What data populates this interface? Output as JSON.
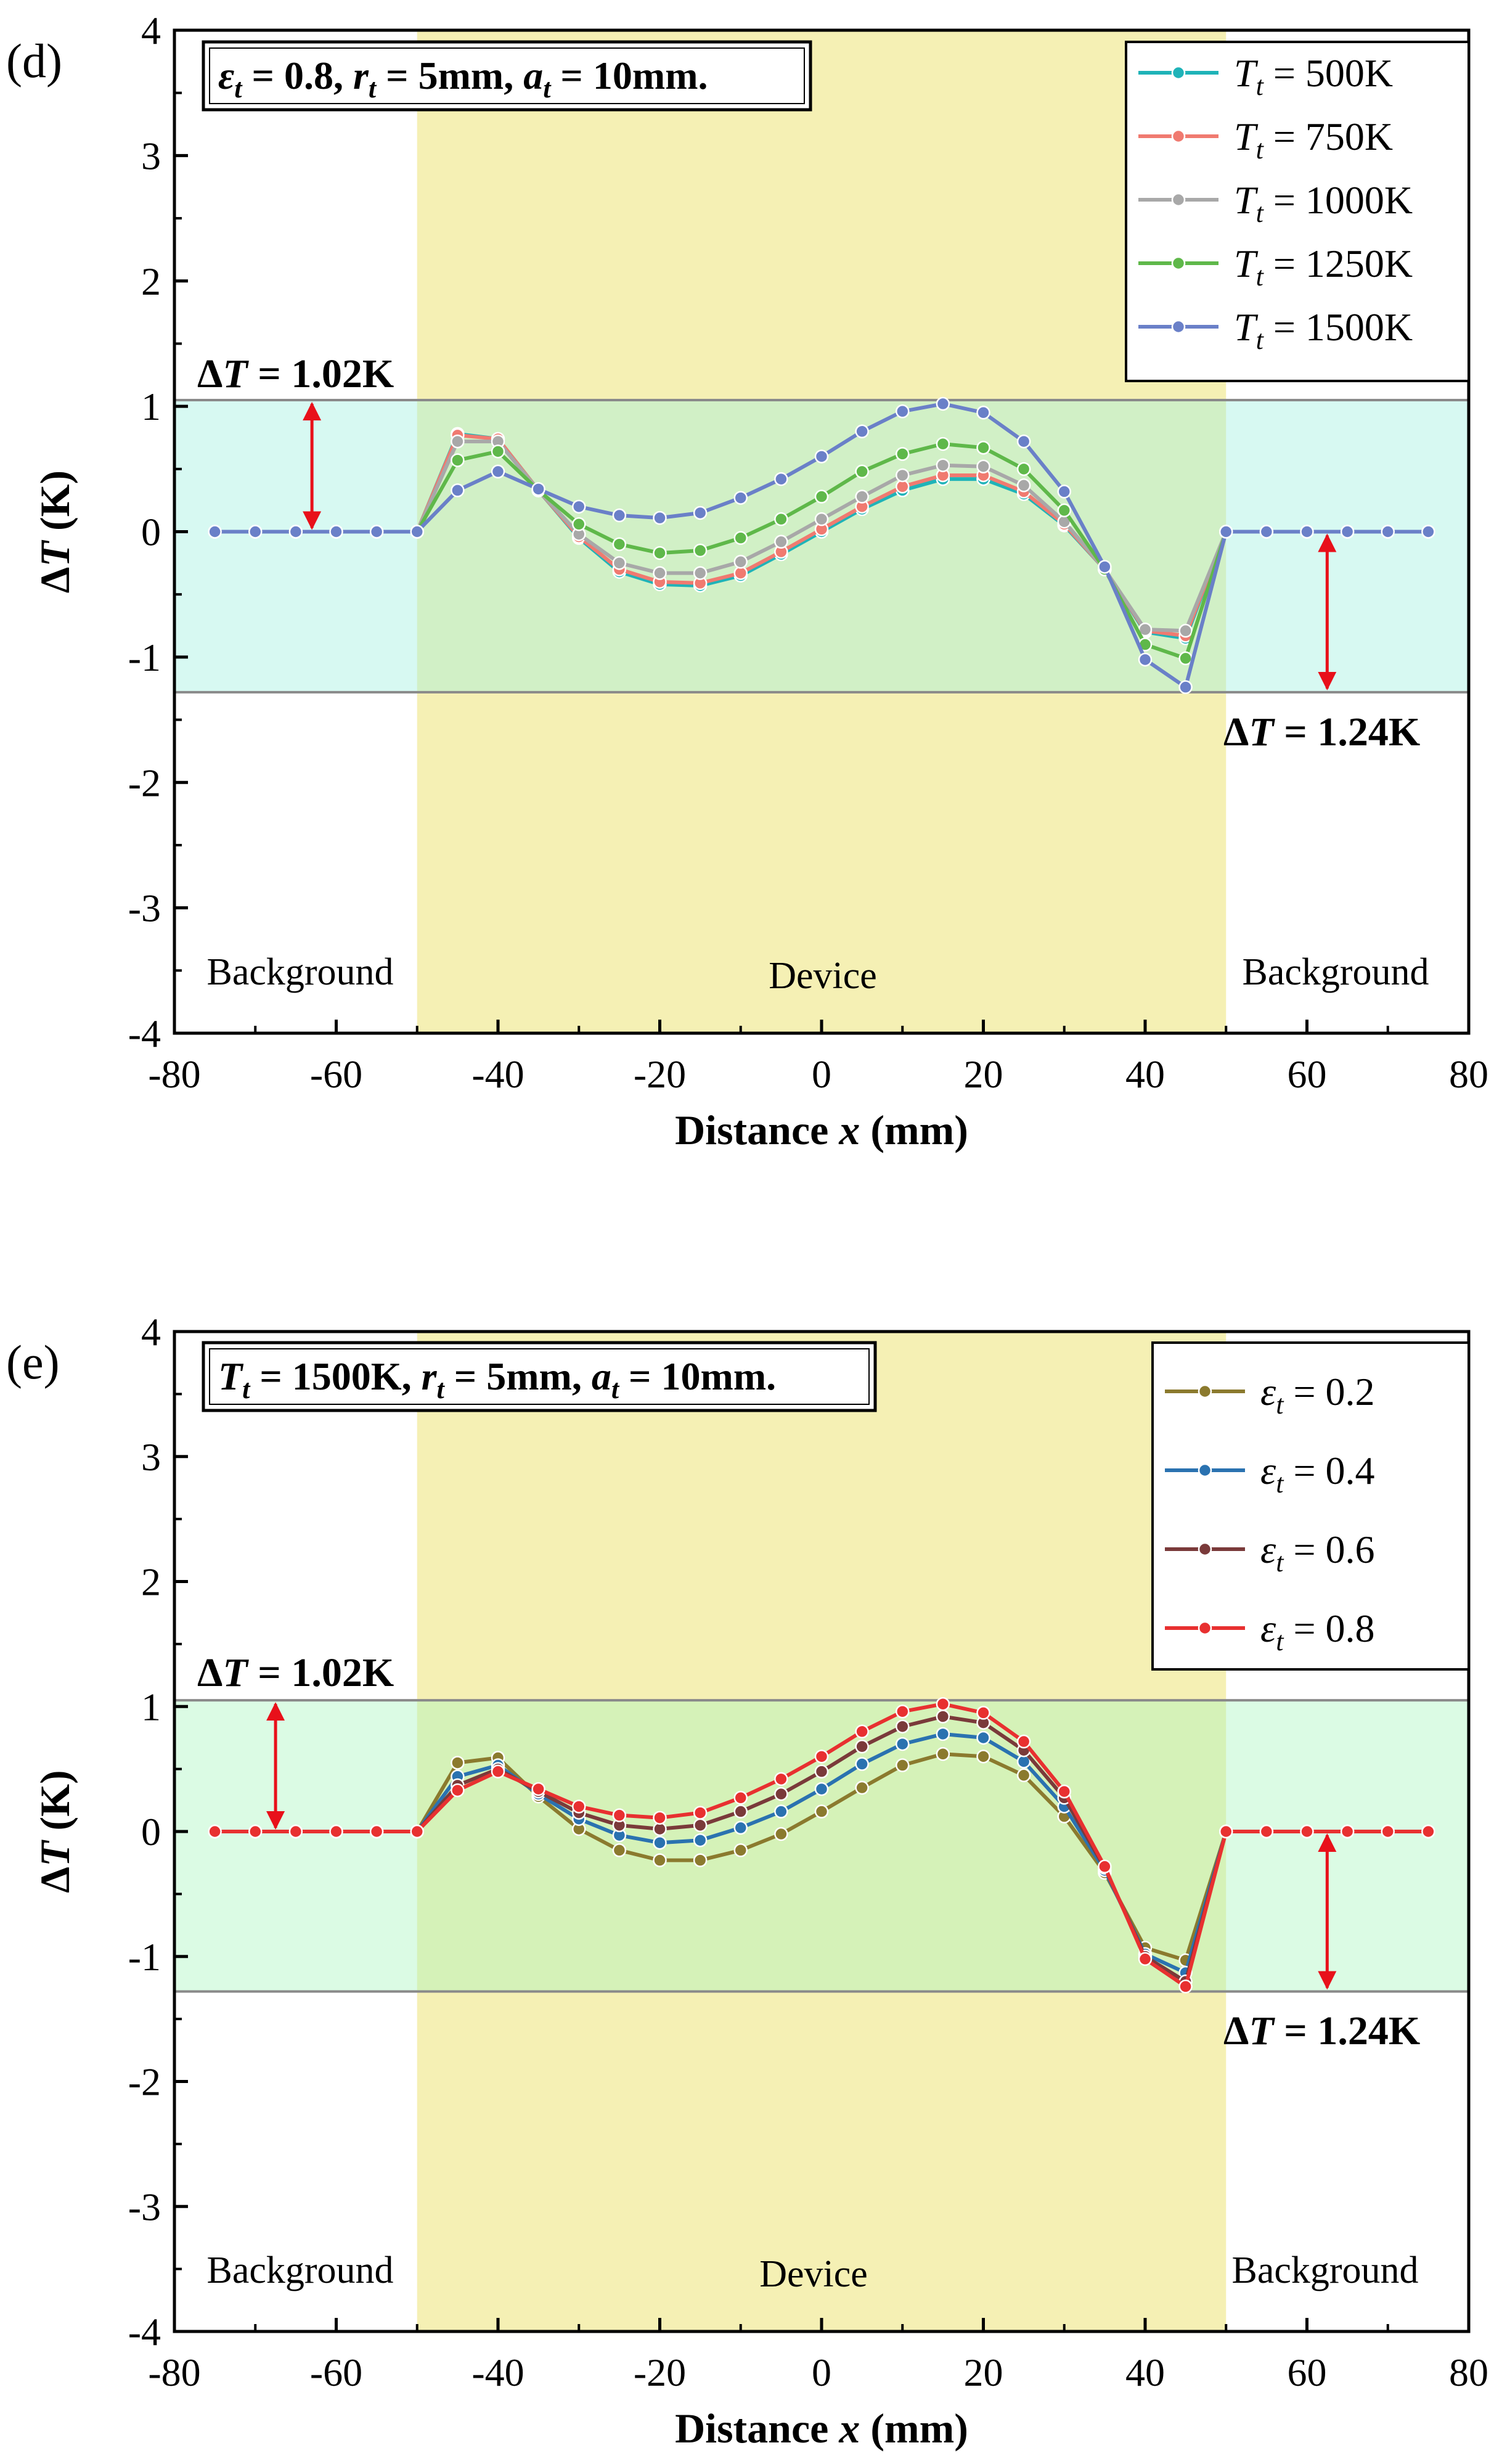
{
  "chart_data": [
    {
      "panel": "(d)",
      "type": "line",
      "parameter_text": "εt = 0.8, rt = 5mm, at = 10mm.",
      "xlabel": "Distance x (mm)",
      "ylabel": "ΔT (K)",
      "xlim": [
        -80,
        80
      ],
      "ylim": [
        -4,
        4
      ],
      "xticks": [
        "-80",
        "-60",
        "-40",
        "-20",
        "0",
        "20",
        "40",
        "60",
        "80"
      ],
      "yticks": [
        "-4",
        "-3",
        "-2",
        "-1",
        "0",
        "1",
        "2",
        "3",
        "4"
      ],
      "regions": [
        {
          "label": "Background",
          "x_range": [
            -80,
            -50
          ]
        },
        {
          "label": "Device",
          "x_range": [
            -50,
            50
          ]
        },
        {
          "label": "Background",
          "x_range": [
            50,
            80
          ]
        }
      ],
      "band": {
        "upper": 1.05,
        "lower": -1.28
      },
      "annotations": [
        {
          "text": "ΔT = 1.02K",
          "arrow_x": -63
        },
        {
          "text": "ΔT = 1.24K",
          "arrow_x": 62.5
        }
      ],
      "legend_position": "top-right",
      "x": [
        -75,
        -70,
        -65,
        -60,
        -55,
        -50,
        -45,
        -40,
        -35,
        -30,
        -25,
        -20,
        -15,
        -10,
        -5,
        0,
        5,
        10,
        15,
        20,
        25,
        30,
        35,
        40,
        45,
        50,
        55,
        60,
        65,
        70,
        75
      ],
      "series": [
        {
          "name": "Tt = 500K",
          "color": "#1fb3b8",
          "values": [
            0,
            0,
            0,
            0,
            0,
            0,
            0.78,
            0.74,
            0.33,
            -0.05,
            -0.32,
            -0.42,
            -0.43,
            -0.35,
            -0.18,
            0.0,
            0.18,
            0.33,
            0.42,
            0.42,
            0.3,
            0.05,
            -0.3,
            -0.8,
            -0.85,
            0,
            0,
            0,
            0,
            0,
            0
          ]
        },
        {
          "name": "Tt = 750K",
          "color": "#f07a70",
          "values": [
            0,
            0,
            0,
            0,
            0,
            0,
            0.77,
            0.74,
            0.33,
            -0.04,
            -0.3,
            -0.4,
            -0.41,
            -0.33,
            -0.16,
            0.02,
            0.2,
            0.36,
            0.45,
            0.45,
            0.32,
            0.06,
            -0.3,
            -0.79,
            -0.83,
            0,
            0,
            0,
            0,
            0,
            0
          ]
        },
        {
          "name": "Tt = 1000K",
          "color": "#a8a8a8",
          "values": [
            0,
            0,
            0,
            0,
            0,
            0,
            0.72,
            0.72,
            0.33,
            -0.02,
            -0.25,
            -0.33,
            -0.33,
            -0.24,
            -0.08,
            0.1,
            0.28,
            0.45,
            0.53,
            0.52,
            0.37,
            0.08,
            -0.3,
            -0.78,
            -0.79,
            0,
            0,
            0,
            0,
            0,
            0
          ]
        },
        {
          "name": "Tt = 1250K",
          "color": "#5fb84a",
          "values": [
            0,
            0,
            0,
            0,
            0,
            0,
            0.57,
            0.64,
            0.33,
            0.06,
            -0.1,
            -0.17,
            -0.15,
            -0.05,
            0.1,
            0.28,
            0.48,
            0.62,
            0.7,
            0.67,
            0.5,
            0.17,
            -0.3,
            -0.9,
            -1.01,
            0,
            0,
            0,
            0,
            0,
            0
          ]
        },
        {
          "name": "Tt = 1500K",
          "color": "#6a80c8",
          "values": [
            0,
            0,
            0,
            0,
            0,
            0,
            0.33,
            0.48,
            0.34,
            0.2,
            0.13,
            0.11,
            0.15,
            0.27,
            0.42,
            0.6,
            0.8,
            0.96,
            1.02,
            0.95,
            0.72,
            0.32,
            -0.28,
            -1.02,
            -1.24,
            0,
            0,
            0,
            0,
            0,
            0
          ]
        }
      ]
    },
    {
      "panel": "(e)",
      "type": "line",
      "parameter_text": "Tt = 1500K, rt = 5mm, at = 10mm.",
      "xlabel": "Distance x (mm)",
      "ylabel": "ΔT (K)",
      "xlim": [
        -80,
        80
      ],
      "ylim": [
        -4,
        4
      ],
      "xticks": [
        "-80",
        "-60",
        "-40",
        "-20",
        "0",
        "20",
        "40",
        "60",
        "80"
      ],
      "yticks": [
        "-4",
        "-3",
        "-2",
        "-1",
        "0",
        "1",
        "2",
        "3",
        "4"
      ],
      "regions": [
        {
          "label": "Background",
          "x_range": [
            -80,
            -50
          ]
        },
        {
          "label": "Device",
          "x_range": [
            -50,
            50
          ]
        },
        {
          "label": "Background",
          "x_range": [
            50,
            80
          ]
        }
      ],
      "band": {
        "upper": 1.05,
        "lower": -1.28
      },
      "annotations": [
        {
          "text": "ΔT = 1.02K",
          "arrow_x": -67.5
        },
        {
          "text": "ΔT = 1.24K",
          "arrow_x": 62.5
        }
      ],
      "legend_position": "top-right",
      "x": [
        -75,
        -70,
        -65,
        -60,
        -55,
        -50,
        -45,
        -40,
        -35,
        -30,
        -25,
        -20,
        -15,
        -10,
        -5,
        0,
        5,
        10,
        15,
        20,
        25,
        30,
        35,
        40,
        45,
        50,
        55,
        60,
        65,
        70,
        75
      ],
      "series": [
        {
          "name": "εt = 0.2",
          "color": "#8b7a2e",
          "values": [
            0,
            0,
            0,
            0,
            0,
            0,
            0.55,
            0.59,
            0.28,
            0.02,
            -0.15,
            -0.23,
            -0.23,
            -0.15,
            -0.02,
            0.16,
            0.35,
            0.53,
            0.62,
            0.6,
            0.45,
            0.12,
            -0.33,
            -0.93,
            -1.03,
            0,
            0,
            0,
            0,
            0,
            0
          ]
        },
        {
          "name": "εt = 0.4",
          "color": "#2a72b0",
          "values": [
            0,
            0,
            0,
            0,
            0,
            0,
            0.44,
            0.53,
            0.3,
            0.1,
            -0.03,
            -0.09,
            -0.07,
            0.03,
            0.16,
            0.34,
            0.54,
            0.7,
            0.78,
            0.75,
            0.56,
            0.2,
            -0.31,
            -0.98,
            -1.13,
            0,
            0,
            0,
            0,
            0,
            0
          ]
        },
        {
          "name": "εt = 0.6",
          "color": "#7a3a3a",
          "values": [
            0,
            0,
            0,
            0,
            0,
            0,
            0.37,
            0.5,
            0.32,
            0.15,
            0.05,
            0.02,
            0.05,
            0.16,
            0.3,
            0.48,
            0.68,
            0.84,
            0.92,
            0.87,
            0.65,
            0.27,
            -0.29,
            -1.0,
            -1.2,
            0,
            0,
            0,
            0,
            0,
            0
          ]
        },
        {
          "name": "εt = 0.8",
          "color": "#e83030",
          "values": [
            0,
            0,
            0,
            0,
            0,
            0,
            0.33,
            0.48,
            0.34,
            0.2,
            0.13,
            0.11,
            0.15,
            0.27,
            0.42,
            0.6,
            0.8,
            0.96,
            1.02,
            0.95,
            0.72,
            0.32,
            -0.28,
            -1.02,
            -1.24,
            0,
            0,
            0,
            0,
            0,
            0
          ]
        }
      ]
    }
  ]
}
